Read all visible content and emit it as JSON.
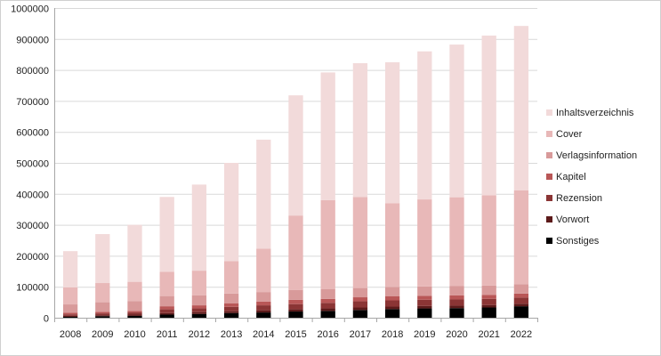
{
  "chart_data": {
    "type": "bar",
    "stacked": true,
    "categories": [
      "2008",
      "2009",
      "2010",
      "2011",
      "2012",
      "2013",
      "2014",
      "2015",
      "2016",
      "2017",
      "2018",
      "2019",
      "2020",
      "2021",
      "2022"
    ],
    "ylim": [
      0,
      1000000
    ],
    "yticks": [
      0,
      100000,
      200000,
      300000,
      400000,
      500000,
      600000,
      700000,
      800000,
      900000,
      1000000
    ],
    "ytick_labels": [
      "0",
      "100000",
      "200000",
      "300000",
      "400000",
      "500000",
      "600000",
      "700000",
      "800000",
      "900000",
      "1000000"
    ],
    "grid": true,
    "legend_position": "right",
    "series": [
      {
        "name": "Sonstiges",
        "color": "#000000",
        "values": [
          3000,
          5000,
          6000,
          10000,
          12000,
          15000,
          17000,
          20000,
          22000,
          25000,
          28000,
          30000,
          31000,
          33000,
          37000
        ]
      },
      {
        "name": "Vorwort",
        "color": "#5c1a1a",
        "values": [
          3000,
          3000,
          4000,
          5000,
          6000,
          6000,
          7000,
          7000,
          8000,
          8000,
          8000,
          8000,
          8000,
          8000,
          8000
        ]
      },
      {
        "name": "Rezension",
        "color": "#8b3535",
        "values": [
          5000,
          6000,
          7000,
          12000,
          12000,
          14000,
          16000,
          17000,
          18000,
          20000,
          20000,
          20000,
          20000,
          20000,
          20000
        ]
      },
      {
        "name": "Kapitel",
        "color": "#b95757",
        "values": [
          5000,
          5000,
          5000,
          10000,
          10000,
          11000,
          12000,
          14000,
          13000,
          13000,
          13000,
          13000,
          13000,
          13000,
          13000
        ]
      },
      {
        "name": "Verlagsinformation",
        "color": "#d89a9a",
        "values": [
          27000,
          31000,
          32000,
          33000,
          32000,
          32000,
          31000,
          32000,
          31000,
          30000,
          30000,
          30000,
          30000,
          30000,
          30000
        ]
      },
      {
        "name": "Cover",
        "color": "#e8b8b8",
        "values": [
          55000,
          62000,
          62000,
          78000,
          80000,
          105000,
          140000,
          240000,
          288000,
          294000,
          271000,
          281000,
          287000,
          291000,
          303000
        ]
      },
      {
        "name": "Inhaltsverzeichnis",
        "color": "#f2dada",
        "values": [
          117000,
          158000,
          184000,
          242000,
          278000,
          317000,
          352000,
          388000,
          412000,
          432000,
          455000,
          478000,
          493000,
          516000,
          531000
        ]
      }
    ],
    "legend_order": [
      "Inhaltsverzeichnis",
      "Cover",
      "Verlagsinformation",
      "Kapitel",
      "Rezension",
      "Vorwort",
      "Sonstiges"
    ]
  }
}
